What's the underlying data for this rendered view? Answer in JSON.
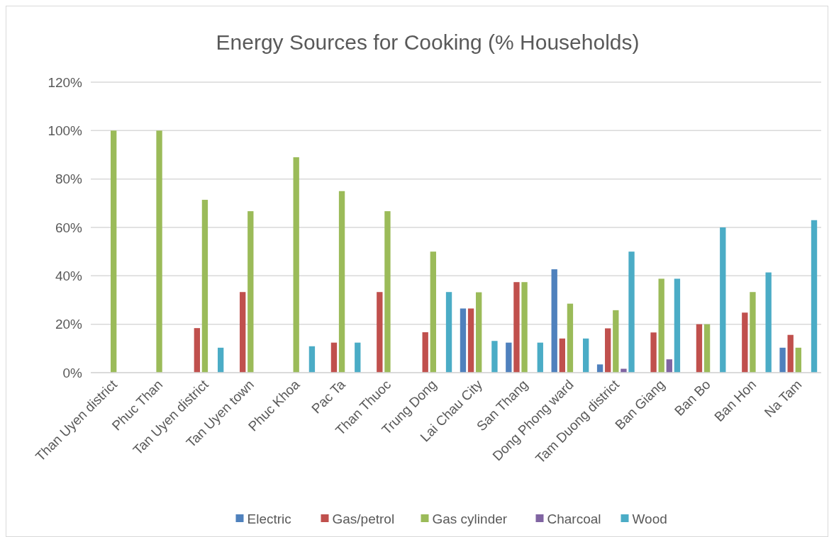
{
  "chart_data": {
    "type": "bar",
    "title": "Energy Sources for Cooking (% Households)",
    "categories": [
      "Than Uyen district",
      "Phuc Than",
      "Tan Uyen district",
      "Tan Uyen town",
      "Phuc Khoa",
      "Pac Ta",
      "Than Thuoc",
      "Trung Dong",
      "Lai Chau City",
      "San Thang",
      "Dong Phong ward",
      "Tam Duong district",
      "Ban Giang",
      "Ban Bo",
      "Ban Hon",
      "Na Tam"
    ],
    "series": [
      {
        "name": "Electric",
        "color": "#4f81bd",
        "values": [
          null,
          null,
          null,
          null,
          null,
          null,
          null,
          null,
          26.5,
          12.4,
          42.7,
          3.4,
          null,
          null,
          null,
          10.3
        ]
      },
      {
        "name": "Gas/petrol",
        "color": "#c0504d",
        "values": [
          null,
          null,
          18.4,
          33.3,
          null,
          12.4,
          33.3,
          16.7,
          26.5,
          37.4,
          14.1,
          18.3,
          16.6,
          20,
          24.8,
          15.6
        ]
      },
      {
        "name": "Gas cylinder",
        "color": "#9bbb59",
        "values": [
          100,
          100,
          71.4,
          66.7,
          89,
          75,
          66.7,
          50,
          33.2,
          37.4,
          28.5,
          25.8,
          38.8,
          20,
          33.3,
          10.3
        ]
      },
      {
        "name": "Charcoal",
        "color": "#8064a2",
        "values": [
          null,
          null,
          null,
          null,
          null,
          null,
          null,
          null,
          null,
          null,
          null,
          1.6,
          5.5,
          null,
          null,
          null
        ]
      },
      {
        "name": "Wood",
        "color": "#4bacc6",
        "values": [
          null,
          null,
          10.3,
          null,
          10.9,
          12.4,
          null,
          33.3,
          13.1,
          12.4,
          14.1,
          50,
          38.8,
          60,
          41.4,
          63
        ]
      }
    ],
    "ylim": [
      0,
      120
    ],
    "yticks": [
      {
        "value": 0,
        "label": "0%"
      },
      {
        "value": 20,
        "label": "20%"
      },
      {
        "value": 40,
        "label": "40%"
      },
      {
        "value": 60,
        "label": "60%"
      },
      {
        "value": 80,
        "label": "80%"
      },
      {
        "value": 100,
        "label": "100%"
      },
      {
        "value": 120,
        "label": "120%"
      }
    ],
    "grid": "y",
    "legend": "bottom"
  }
}
